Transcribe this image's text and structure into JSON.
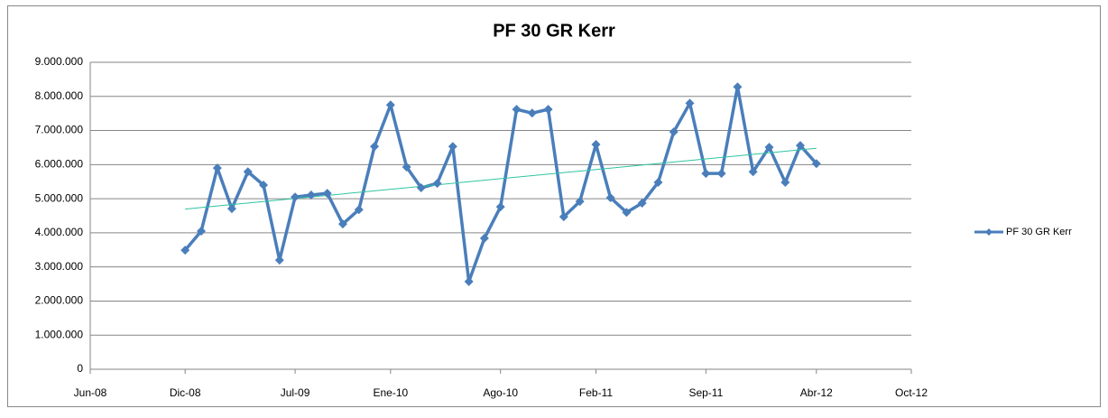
{
  "chart_data": {
    "type": "line",
    "title": "PF 30 GR Kerr",
    "x": [
      "2008-12-01",
      "2009-01-01",
      "2009-02-01",
      "2009-03-01",
      "2009-04-01",
      "2009-05-01",
      "2009-06-01",
      "2009-07-01",
      "2009-08-01",
      "2009-09-01",
      "2009-10-01",
      "2009-11-01",
      "2009-12-01",
      "2010-01-01",
      "2010-02-01",
      "2010-03-01",
      "2010-04-01",
      "2010-05-01",
      "2010-06-01",
      "2010-07-01",
      "2010-08-01",
      "2010-09-01",
      "2010-10-01",
      "2010-11-01",
      "2010-12-01",
      "2011-01-01",
      "2011-02-01",
      "2011-03-01",
      "2011-04-01",
      "2011-05-01",
      "2011-06-01",
      "2011-07-01",
      "2011-08-01",
      "2011-09-01",
      "2011-10-01",
      "2011-11-01",
      "2011-12-01",
      "2012-01-01",
      "2012-02-01",
      "2012-03-01",
      "2012-04-01"
    ],
    "series": [
      {
        "name": "PF 30 GR Kerr",
        "color": "#4a7ebb",
        "values": [
          3490000,
          4050000,
          5900000,
          4710000,
          5790000,
          5400000,
          3200000,
          5050000,
          5110000,
          5160000,
          4260000,
          4680000,
          6530000,
          7750000,
          5930000,
          5320000,
          5450000,
          6530000,
          2570000,
          3840000,
          4760000,
          7620000,
          7510000,
          7620000,
          4470000,
          4920000,
          6590000,
          5030000,
          4600000,
          4870000,
          5480000,
          6960000,
          7800000,
          5740000,
          5740000,
          8280000,
          5790000,
          6510000,
          5480000,
          6560000,
          6030000
        ]
      }
    ],
    "trendline": true,
    "trendline_color": "#2ec4a0",
    "xlim": [
      "2008-06-01",
      "2012-10-01"
    ],
    "xticks": [
      {
        "value": "2008-06-01",
        "label": "Jun-08"
      },
      {
        "value": "2008-12-01",
        "label": "Dic-08"
      },
      {
        "value": "2009-07-01",
        "label": "Jul-09"
      },
      {
        "value": "2010-01-01",
        "label": "Ene-10"
      },
      {
        "value": "2010-08-01",
        "label": "Ago-10"
      },
      {
        "value": "2011-02-01",
        "label": "Feb-11"
      },
      {
        "value": "2011-09-01",
        "label": "Sep-11"
      },
      {
        "value": "2012-04-01",
        "label": "Abr-12"
      },
      {
        "value": "2012-10-01",
        "label": "Oct-12"
      }
    ],
    "ylim": [
      0,
      9000000
    ],
    "yticks": [
      0,
      {
        "value": 1000000,
        "label": "1.000.000"
      },
      {
        "value": 2000000,
        "label": "2.000.000"
      },
      {
        "value": 3000000,
        "label": "3.000.000"
      },
      {
        "value": 4000000,
        "label": "4.000.000"
      },
      {
        "value": 5000000,
        "label": "5.000.000"
      },
      {
        "value": 6000000,
        "label": "6.000.000"
      },
      {
        "value": 7000000,
        "label": "7.000.000"
      },
      {
        "value": 8000000,
        "label": "8.000.000"
      },
      {
        "value": 9000000,
        "label": "9.000.000"
      }
    ],
    "grid": true,
    "legend": "right"
  }
}
